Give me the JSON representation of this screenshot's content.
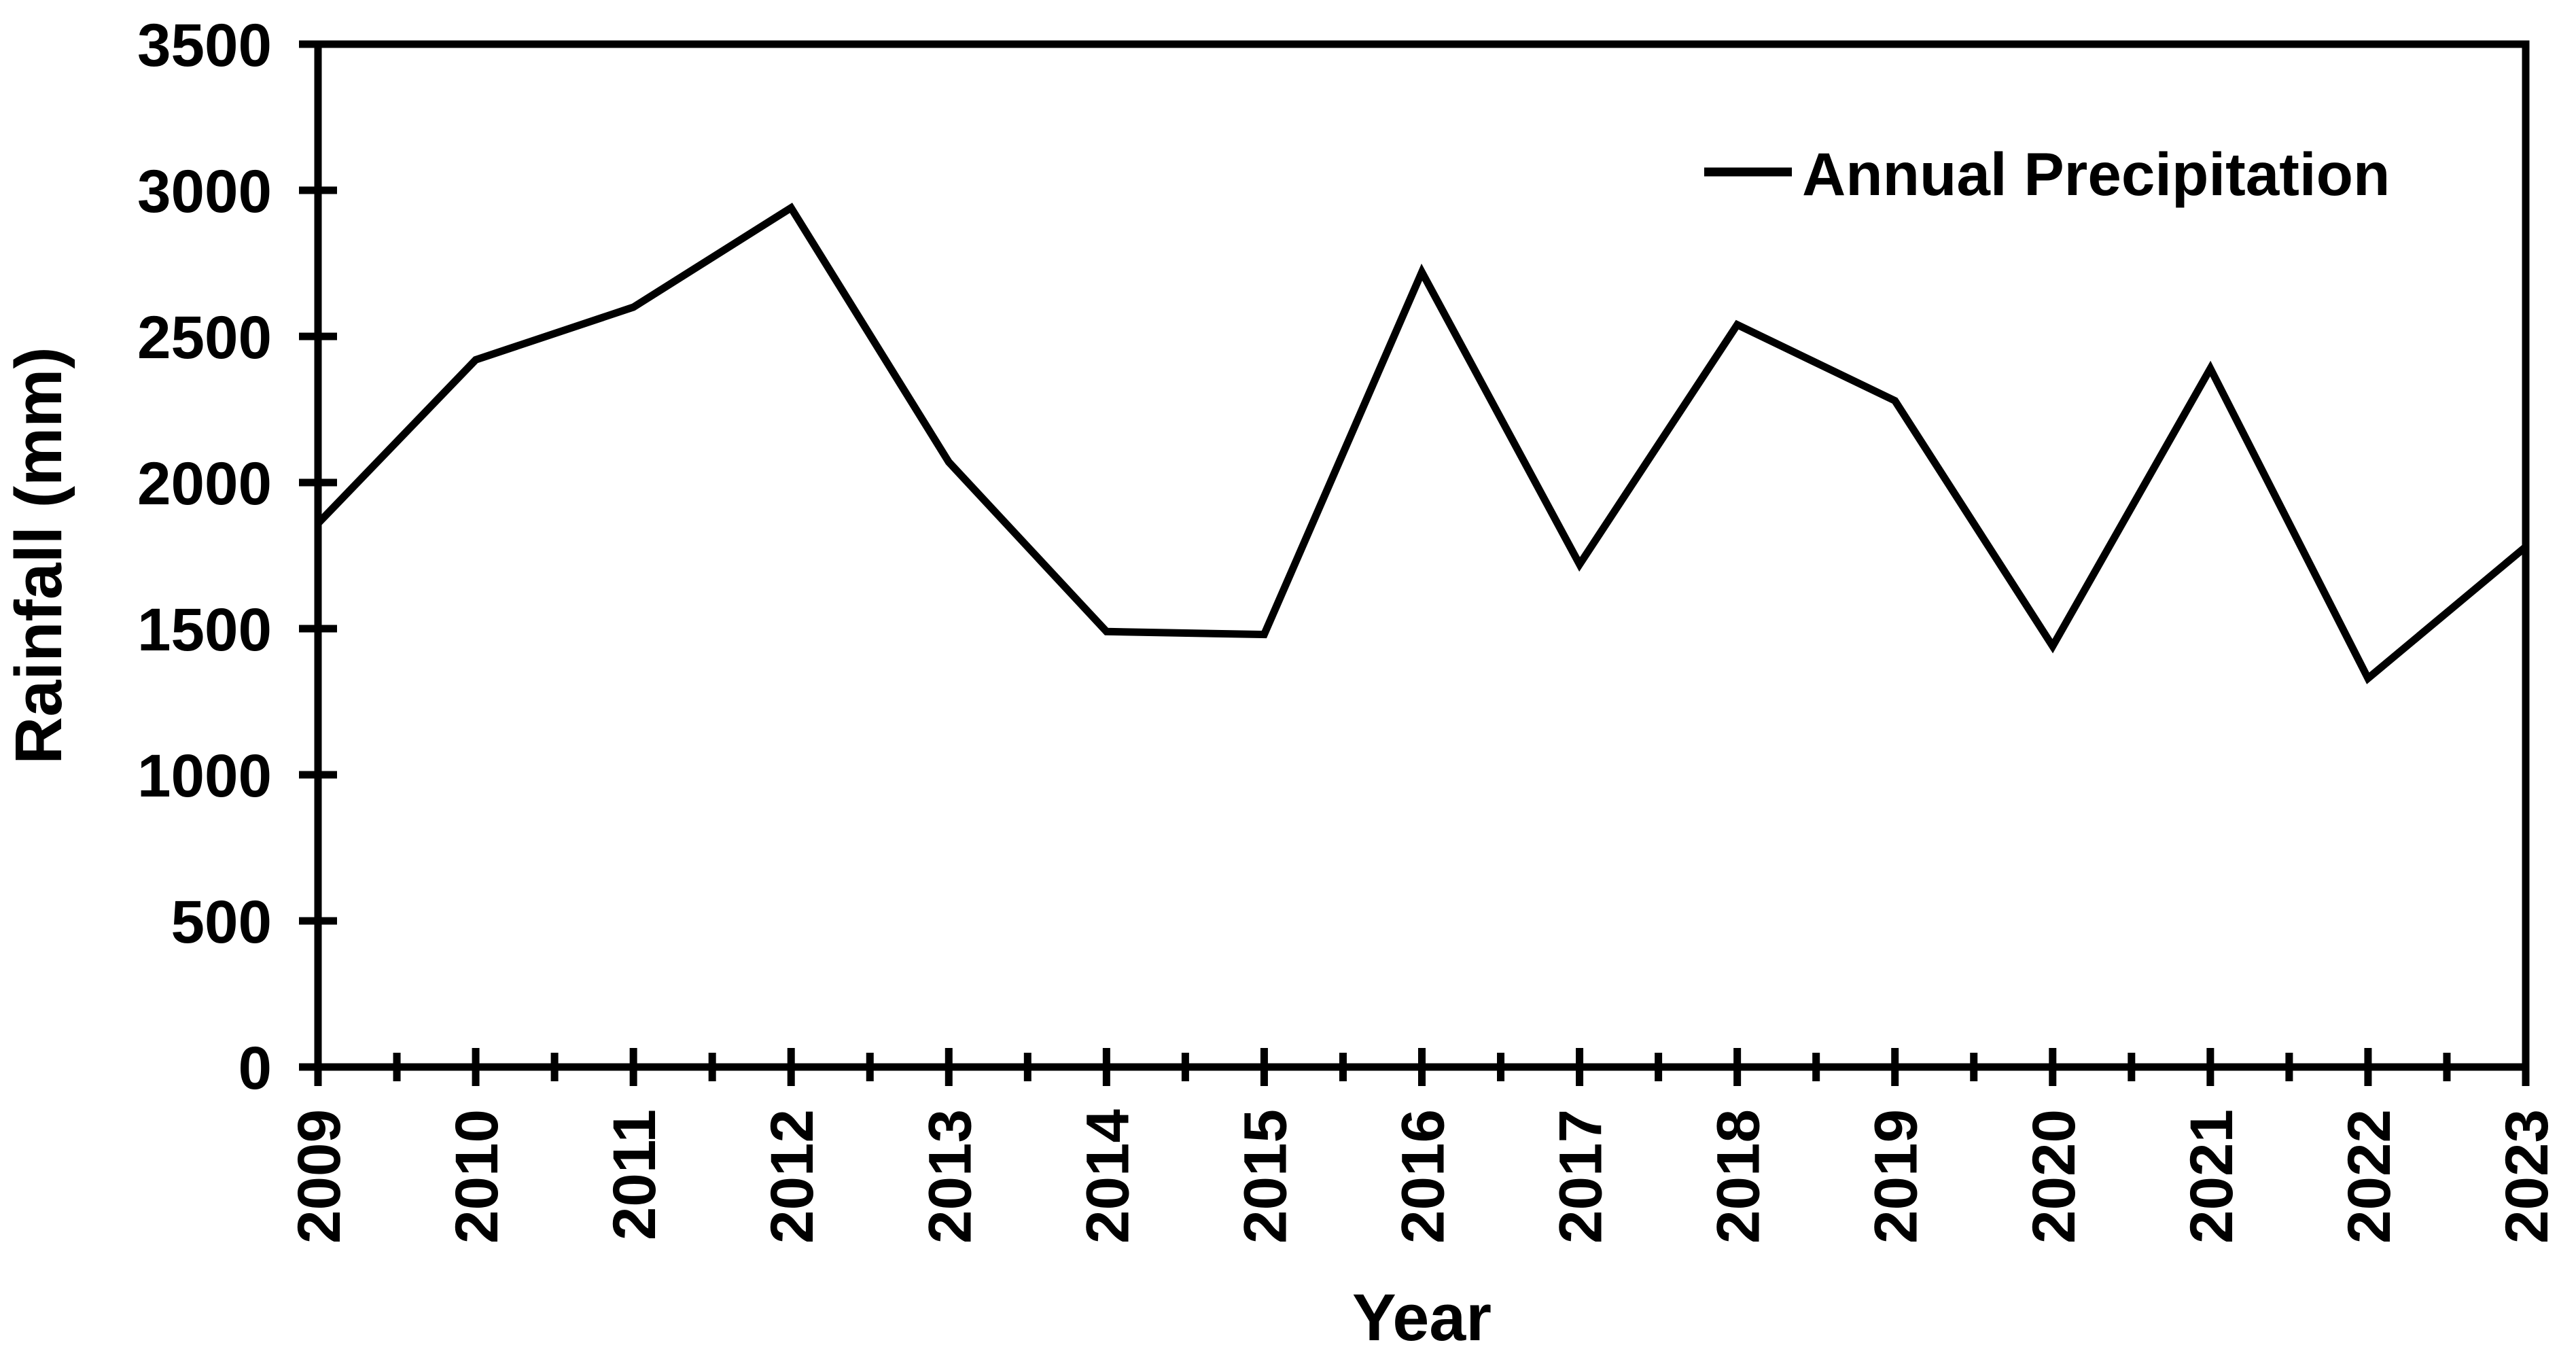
{
  "figure": {
    "background_color": "#ffffff",
    "ink_color": "#000000"
  },
  "chart_data": {
    "type": "line",
    "title": "",
    "xlabel": "Year",
    "ylabel": "Rainfall (mm)",
    "categories": [
      "2009",
      "2010",
      "2011",
      "2012",
      "2013",
      "2014",
      "2015",
      "2016",
      "2017",
      "2018",
      "2019",
      "2020",
      "2021",
      "2022",
      "2023"
    ],
    "series": [
      {
        "name": "Annual Precipitation",
        "values": [
          1860,
          2420,
          2600,
          2940,
          2070,
          1490,
          1480,
          2720,
          1720,
          2540,
          2280,
          1440,
          2390,
          1330,
          1780
        ],
        "color": "#000000"
      }
    ],
    "ylim": [
      0,
      3500
    ],
    "yticks": [
      "0",
      "500",
      "1000",
      "1500",
      "2000",
      "2500",
      "3000",
      "3500"
    ],
    "ytick_values": [
      0,
      500,
      1000,
      1500,
      2000,
      2500,
      3000,
      3500
    ],
    "x_tick_label_rotation": 90,
    "x_minor_ticks": "half-year",
    "grid": "off",
    "frame": "box",
    "legend_position": "top-right",
    "legend_entries": [
      "Annual Precipitation"
    ]
  }
}
